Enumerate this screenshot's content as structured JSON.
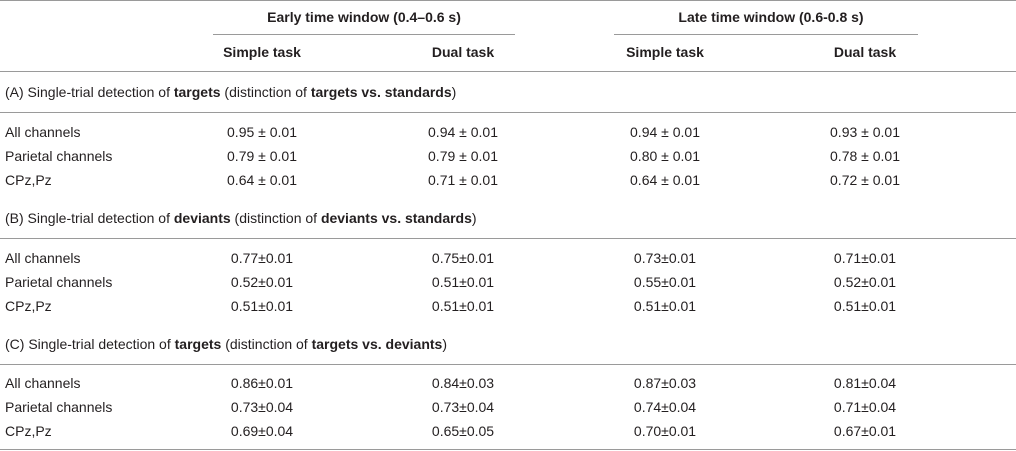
{
  "header": {
    "early_window": "Early time window (0.4–0.6 s)",
    "late_window": "Late time window (0.6-0.8 s)",
    "cols": [
      "Simple task",
      "Dual task",
      "Simple task",
      "Dual task"
    ]
  },
  "sections": [
    {
      "title": [
        {
          "text": "(A) Single-trial detection of ",
          "bold": false
        },
        {
          "text": "targets",
          "bold": true
        },
        {
          "text": " (distinction of ",
          "bold": false
        },
        {
          "text": "targets vs. standards",
          "bold": true
        },
        {
          "text": ")",
          "bold": false
        }
      ],
      "rows": [
        {
          "label": "All channels",
          "values": [
            "0.95 ± 0.01",
            "0.94 ± 0.01",
            "0.94 ± 0.01",
            "0.93 ± 0.01"
          ]
        },
        {
          "label": "Parietal channels",
          "values": [
            "0.79 ± 0.01",
            "0.79 ± 0.01",
            "0.80 ± 0.01",
            "0.78 ± 0.01"
          ]
        },
        {
          "label": "CPz,Pz",
          "values": [
            "0.64 ± 0.01",
            "0.71 ± 0.01",
            "0.64 ± 0.01",
            "0.72 ± 0.01"
          ]
        }
      ]
    },
    {
      "title": [
        {
          "text": "(B) Single-trial detection of ",
          "bold": false
        },
        {
          "text": "deviants",
          "bold": true
        },
        {
          "text": " (distinction of ",
          "bold": false
        },
        {
          "text": "deviants vs. standards",
          "bold": true
        },
        {
          "text": ")",
          "bold": false
        }
      ],
      "rows": [
        {
          "label": "All channels",
          "values": [
            "0.77±0.01",
            "0.75±0.01",
            "0.73±0.01",
            "0.71±0.01"
          ]
        },
        {
          "label": "Parietal channels",
          "values": [
            "0.52±0.01",
            "0.51±0.01",
            "0.55±0.01",
            "0.52±0.01"
          ]
        },
        {
          "label": "CPz,Pz",
          "values": [
            "0.51±0.01",
            "0.51±0.01",
            "0.51±0.01",
            "0.51±0.01"
          ]
        }
      ]
    },
    {
      "title": [
        {
          "text": "(C) Single-trial detection of ",
          "bold": false
        },
        {
          "text": "targets",
          "bold": true
        },
        {
          "text": " (distinction of ",
          "bold": false
        },
        {
          "text": "targets vs. deviants",
          "bold": true
        },
        {
          "text": ")",
          "bold": false
        }
      ],
      "rows": [
        {
          "label": "All channels",
          "values": [
            "0.86±0.01",
            "0.84±0.03",
            "0.87±0.03",
            "0.81±0.04"
          ]
        },
        {
          "label": "Parietal channels",
          "values": [
            "0.73±0.04",
            "0.73±0.04",
            "0.74±0.04",
            "0.71±0.04"
          ]
        },
        {
          "label": "CPz,Pz",
          "values": [
            "0.69±0.04",
            "0.65±0.05",
            "0.70±0.01",
            "0.67±0.01"
          ]
        }
      ]
    }
  ]
}
